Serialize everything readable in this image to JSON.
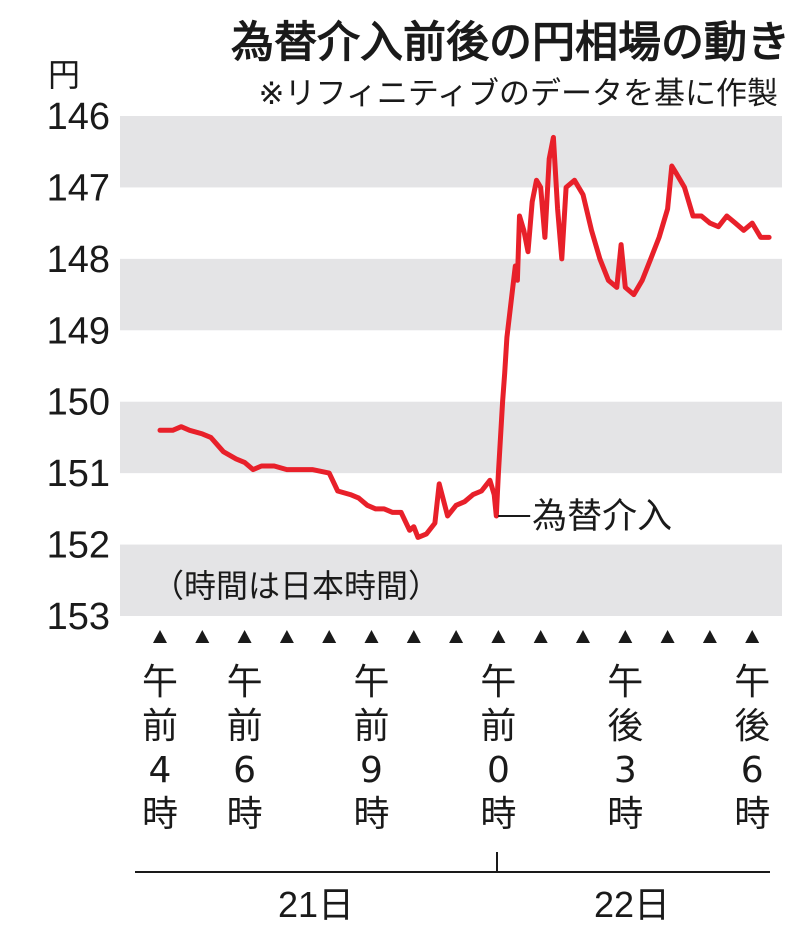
{
  "chart_data": {
    "type": "line",
    "title": "為替介入前後の円相場の動き",
    "subtitle": "※リフィニティブのデータを基に作製",
    "ylabel": "円",
    "y_ticks": [
      "146",
      "147",
      "148",
      "149",
      "150",
      "151",
      "152",
      "153"
    ],
    "ylim": [
      153,
      146
    ],
    "y_inverted": true,
    "grid": "alternating horizontal bands",
    "x_labels": [
      {
        "text": "午前4時",
        "slot": 0
      },
      {
        "text": "午前6時",
        "slot": 2
      },
      {
        "text": "午前9時",
        "slot": 5
      },
      {
        "text": "午前0時",
        "slot": 8
      },
      {
        "text": "午後3時",
        "slot": 11
      },
      {
        "text": "午後6時",
        "slot": 14
      }
    ],
    "x_markers_count": 15,
    "day_labels": [
      "21日",
      "22日"
    ],
    "note": "（時間は日本時間）",
    "annotation": {
      "text": "為替介入",
      "x": 7.9,
      "y": 151.6
    },
    "series_color": "#e8202a",
    "x": [
      0.0,
      0.3,
      0.5,
      0.7,
      1.0,
      1.2,
      1.5,
      1.8,
      2.0,
      2.2,
      2.4,
      2.7,
      3.0,
      3.3,
      3.6,
      4.0,
      4.2,
      4.5,
      4.7,
      4.9,
      5.1,
      5.3,
      5.5,
      5.7,
      5.9,
      6.0,
      6.1,
      6.3,
      6.5,
      6.6,
      6.8,
      7.0,
      7.2,
      7.4,
      7.6,
      7.8,
      7.9,
      7.95,
      8.0,
      8.05,
      8.1,
      8.15,
      8.2,
      8.3,
      8.4,
      8.45,
      8.5,
      8.6,
      8.7,
      8.8,
      8.9,
      9.0,
      9.1,
      9.2,
      9.3,
      9.4,
      9.5,
      9.6,
      9.8,
      10.0,
      10.2,
      10.4,
      10.6,
      10.8,
      10.9,
      11.0,
      11.2,
      11.4,
      11.6,
      11.8,
      12.0,
      12.1,
      12.2,
      12.4,
      12.6,
      12.8,
      13.0,
      13.2,
      13.4,
      13.6,
      13.8,
      14.0,
      14.2,
      14.4
    ],
    "values": [
      150.4,
      150.4,
      150.35,
      150.4,
      150.45,
      150.5,
      150.7,
      150.8,
      150.85,
      150.95,
      150.9,
      150.9,
      150.95,
      150.95,
      150.95,
      151.0,
      151.25,
      151.3,
      151.35,
      151.45,
      151.5,
      151.5,
      151.55,
      151.55,
      151.8,
      151.75,
      151.9,
      151.85,
      151.7,
      151.15,
      151.6,
      151.45,
      151.4,
      151.3,
      151.25,
      151.1,
      151.3,
      151.6,
      151.0,
      150.5,
      150.0,
      149.6,
      149.1,
      148.6,
      148.1,
      148.3,
      147.4,
      147.6,
      147.9,
      147.2,
      146.9,
      147.0,
      147.7,
      146.6,
      146.3,
      147.3,
      148.0,
      147.0,
      146.9,
      147.1,
      147.6,
      148.0,
      148.3,
      148.4,
      147.8,
      148.4,
      148.5,
      148.3,
      148.0,
      147.7,
      147.3,
      146.7,
      146.8,
      147.0,
      147.4,
      147.4,
      147.5,
      147.55,
      147.4,
      147.5,
      147.6,
      147.5,
      147.7,
      147.7
    ]
  }
}
